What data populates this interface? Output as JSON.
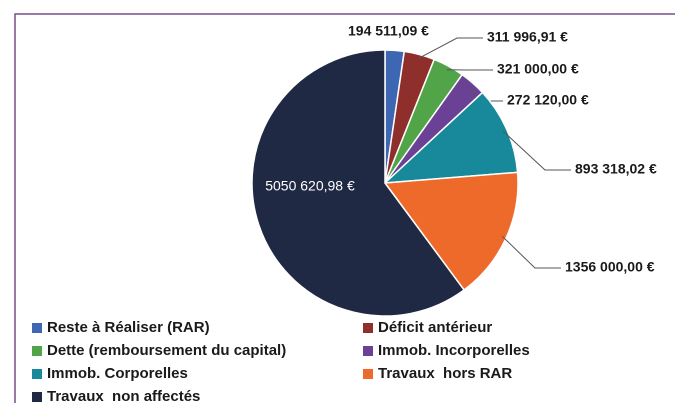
{
  "chart_data": {
    "type": "pie",
    "categories": [
      "Reste à Réaliser (RAR)",
      "Déficit antérieur",
      "Dette (remboursement du capital)",
      "Immob. Incorporelles",
      "Immob. Corporelles",
      "Travaux  hors RAR",
      "Travaux  non affectés"
    ],
    "values": [
      194511.09,
      311996.91,
      321000.0,
      272120.0,
      893318.02,
      1356000.0,
      5050620.98
    ],
    "value_labels": [
      "194 511,09 €",
      "311 996,91 €",
      "321 000,00 €",
      "272 120,00 €",
      "893 318,02 €",
      "1356 000,00 €",
      "5050 620,98 €"
    ],
    "colors": [
      "#3d66b3",
      "#8e2f2c",
      "#52a448",
      "#6b4196",
      "#17899a",
      "#ee6a2a",
      "#1f2944"
    ]
  }
}
